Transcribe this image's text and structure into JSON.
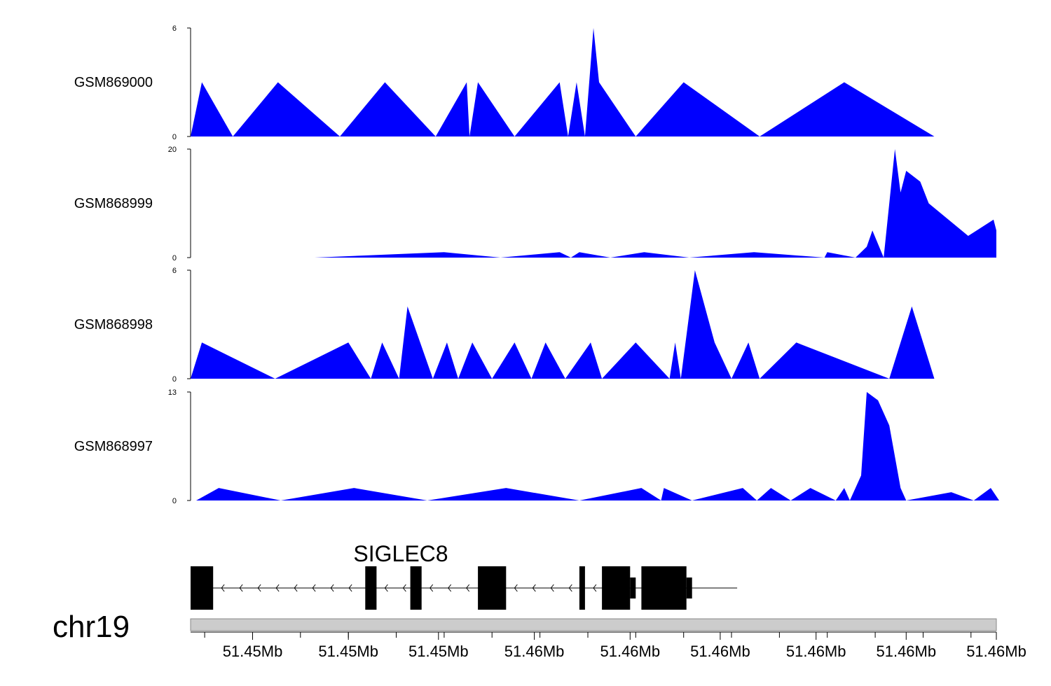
{
  "chart_data": {
    "type": "area",
    "fill_color": "#0000ff",
    "x_range": [
      51.4463,
      51.4606
    ],
    "tracks": [
      {
        "name": "GSM869000",
        "ylim": [
          0,
          6
        ],
        "yticks": [
          "6",
          "0"
        ],
        "x": [
          51.4463,
          51.4465,
          51.44705,
          51.44785,
          51.44895,
          51.44975,
          51.45065,
          51.4512,
          51.45125,
          51.4514,
          51.45205,
          51.45285,
          51.453,
          51.45315,
          51.4533,
          51.45345,
          51.45355,
          51.4542,
          51.45505,
          51.4564,
          51.4579,
          51.4595
        ],
        "y": [
          0,
          3,
          0,
          3,
          0,
          3,
          0,
          3,
          0,
          3,
          0,
          3,
          0,
          3,
          0,
          6,
          3,
          0,
          3,
          0,
          3,
          0
        ]
      },
      {
        "name": "GSM868999",
        "ylim": [
          0,
          20
        ],
        "yticks": [
          "20",
          "0"
        ],
        "x": [
          51.4485,
          51.4508,
          51.4518,
          51.45285,
          51.45305,
          51.4532,
          51.45375,
          51.45435,
          51.45515,
          51.4563,
          51.45755,
          51.4576,
          51.4581,
          51.4583,
          51.4584,
          51.4586,
          51.4588,
          51.4589,
          51.459,
          51.45925,
          51.4594,
          51.4601,
          51.46055,
          51.4606
        ],
        "y": [
          0,
          1,
          0,
          1,
          0,
          1,
          0,
          1,
          0,
          1,
          0,
          1,
          0,
          2,
          5,
          0,
          20,
          12,
          16,
          14,
          10,
          4,
          7,
          5
        ]
      },
      {
        "name": "GSM868998",
        "ylim": [
          0,
          6
        ],
        "yticks": [
          "6",
          "0"
        ],
        "x": [
          51.4463,
          51.4465,
          51.4478,
          51.4491,
          51.4495,
          51.4497,
          51.45,
          51.45015,
          51.4506,
          51.45085,
          51.45105,
          51.4513,
          51.45165,
          51.45205,
          51.45235,
          51.4526,
          51.45295,
          51.4534,
          51.4536,
          51.4542,
          51.4548,
          51.4549,
          51.455,
          51.45525,
          51.4556,
          51.4559,
          51.4562,
          51.4564,
          51.45705,
          51.4587,
          51.4591,
          51.4595
        ],
        "y": [
          0,
          2,
          0,
          2,
          0,
          2,
          0,
          4,
          0,
          2,
          0,
          2,
          0,
          2,
          0,
          2,
          0,
          2,
          0,
          2,
          0,
          2,
          0,
          6,
          2,
          0,
          2,
          0,
          2,
          0,
          4,
          0
        ]
      },
      {
        "name": "GSM868997",
        "ylim": [
          0,
          13
        ],
        "yticks": [
          "13",
          "0"
        ],
        "x": [
          51.4464,
          51.4468,
          51.4479,
          51.4492,
          51.4505,
          51.4519,
          51.4532,
          51.4543,
          51.45465,
          51.4547,
          51.4552,
          51.4561,
          51.45635,
          51.4566,
          51.45695,
          51.4573,
          51.45775,
          51.4579,
          51.458,
          51.4582,
          51.4583,
          51.4585,
          51.4587,
          51.4589,
          51.459,
          51.4598,
          51.4602,
          51.4605,
          51.46065
        ],
        "y": [
          0,
          1.5,
          0,
          1.5,
          0,
          1.5,
          0,
          1.5,
          0,
          1.5,
          0,
          1.5,
          0,
          1.5,
          0,
          1.5,
          0,
          1.5,
          0,
          3,
          13,
          12,
          9,
          1.5,
          0,
          1,
          0,
          1.5,
          0
        ]
      }
    ],
    "gene": {
      "name": "SIGLEC8",
      "strand": "minus",
      "start": 51.4463,
      "end": 51.456,
      "exons": [
        {
          "start": 51.4463,
          "end": 51.4467,
          "height": "tall"
        },
        {
          "start": 51.4494,
          "end": 51.4496,
          "height": "tall"
        },
        {
          "start": 51.4502,
          "end": 51.4504,
          "height": "tall"
        },
        {
          "start": 51.4514,
          "end": 51.4519,
          "height": "tall"
        },
        {
          "start": 51.4532,
          "end": 51.4533,
          "height": "tall"
        },
        {
          "start": 51.4536,
          "end": 51.4541,
          "height": "tall"
        },
        {
          "start": 51.4541,
          "end": 51.4542,
          "height": "medium"
        },
        {
          "start": 51.4543,
          "end": 51.4551,
          "height": "tall"
        },
        {
          "start": 51.4551,
          "end": 51.4552,
          "height": "medium"
        }
      ]
    },
    "chromosome": "chr19",
    "xticks": [
      "51.45Mb",
      "51.45Mb",
      "51.45Mb",
      "51.46Mb",
      "51.46Mb",
      "51.46Mb",
      "51.46Mb",
      "51.46Mb",
      "51.46Mb"
    ],
    "xtick_values": [
      51.4474,
      51.4491,
      51.4507,
      51.4524,
      51.4541,
      51.4557,
      51.4574,
      51.459,
      51.4606
    ]
  }
}
